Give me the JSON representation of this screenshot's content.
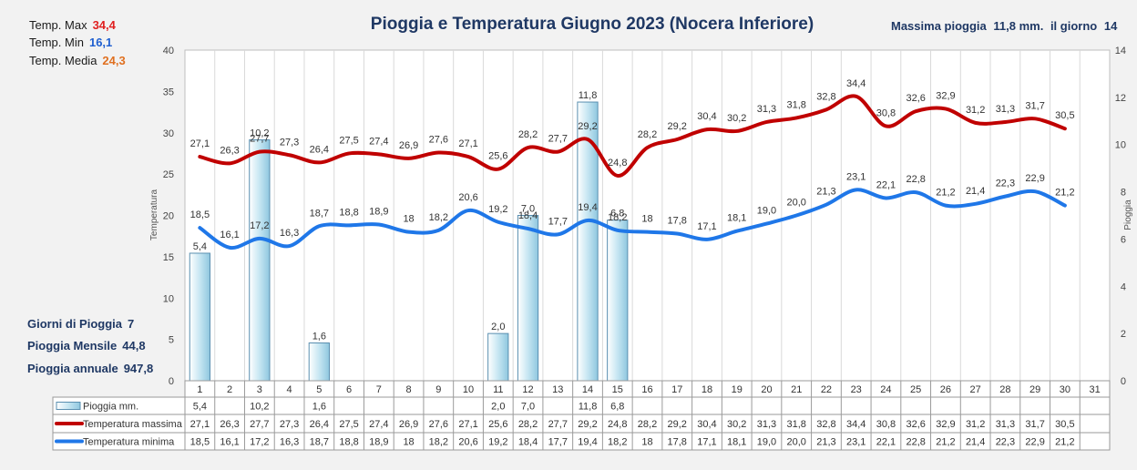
{
  "stats": {
    "max_label": "Temp. Max",
    "max_value": "34,4",
    "min_label": "Temp.  Min",
    "min_value": "16,1",
    "avg_label": "Temp. Media",
    "avg_value": "24,3",
    "rain_days_label": "Giorni di Pioggia",
    "rain_days_value": "7",
    "rain_month_label": "Pioggia Mensile",
    "rain_month_value": "44,8",
    "rain_year_label": "Pioggia annuale",
    "rain_year_value": "947,8"
  },
  "header": {
    "max_rain_label": "Massima pioggia",
    "max_rain_value": "11,8 mm.",
    "max_rain_day_label": "il giorno",
    "max_rain_day": "14"
  },
  "colors": {
    "max_temp": "#c00000",
    "min_temp": "#1f77e8",
    "rain_fill": "#c6e6f2",
    "rain_stroke": "#5a8fb0",
    "title": "#1f3864",
    "max_value": "#e02020",
    "min_value": "#2060d0",
    "avg_value": "#e07020"
  },
  "chart_data": {
    "type": "bar+line",
    "title": "Pioggia e Temperatura Giugno 2023 (Nocera Inferiore)",
    "ylabel": "Temperatura",
    "y2label": "Pioggia",
    "ylim": [
      0,
      40
    ],
    "y2lim": [
      0,
      14
    ],
    "yticks": [
      "0",
      "5",
      "10",
      "15",
      "20",
      "25",
      "30",
      "35",
      "40"
    ],
    "y2ticks": [
      "0",
      "2",
      "4",
      "6",
      "8",
      "10",
      "12",
      "14"
    ],
    "grid": true,
    "categories": [
      "1",
      "2",
      "3",
      "4",
      "5",
      "6",
      "7",
      "8",
      "9",
      "10",
      "11",
      "12",
      "13",
      "14",
      "15",
      "16",
      "17",
      "18",
      "19",
      "20",
      "21",
      "22",
      "23",
      "24",
      "25",
      "26",
      "27",
      "28",
      "29",
      "30",
      "31"
    ],
    "series": [
      {
        "name": "Pioggia mm.",
        "type": "bar",
        "axis": "right",
        "values": [
          5.4,
          null,
          10.2,
          null,
          1.6,
          null,
          null,
          null,
          null,
          null,
          2.0,
          7.0,
          null,
          11.8,
          6.8,
          null,
          null,
          null,
          null,
          null,
          null,
          null,
          null,
          null,
          null,
          null,
          null,
          null,
          null,
          null,
          null
        ],
        "labels": [
          "5,4",
          "",
          "10,2",
          "",
          "1,6",
          "",
          "",
          "",
          "",
          "",
          "2,0",
          "7,0",
          "",
          "11,8",
          "6,8",
          "",
          "",
          "",
          "",
          "",
          "",
          "",
          "",
          "",
          "",
          "",
          "",
          "",
          "",
          "",
          ""
        ]
      },
      {
        "name": "Temperatura massima",
        "type": "line",
        "axis": "left",
        "values": [
          27.1,
          26.3,
          27.7,
          27.3,
          26.4,
          27.5,
          27.4,
          26.9,
          27.6,
          27.1,
          25.6,
          28.2,
          27.7,
          29.2,
          24.8,
          28.2,
          29.2,
          30.4,
          30.2,
          31.3,
          31.8,
          32.8,
          34.4,
          30.8,
          32.6,
          32.9,
          31.2,
          31.3,
          31.7,
          30.5,
          null
        ],
        "labels": [
          "27,1",
          "26,3",
          "27,7",
          "27,3",
          "26,4",
          "27,5",
          "27,4",
          "26,9",
          "27,6",
          "27,1",
          "25,6",
          "28,2",
          "27,7",
          "29,2",
          "24,8",
          "28,2",
          "29,2",
          "30,4",
          "30,2",
          "31,3",
          "31,8",
          "32,8",
          "34,4",
          "30,8",
          "32,6",
          "32,9",
          "31,2",
          "31,3",
          "31,7",
          "30,5",
          ""
        ]
      },
      {
        "name": "Temperatura minima",
        "type": "line",
        "axis": "left",
        "values": [
          18.5,
          16.1,
          17.2,
          16.3,
          18.7,
          18.8,
          18.9,
          18.0,
          18.2,
          20.6,
          19.2,
          18.4,
          17.7,
          19.4,
          18.2,
          18.0,
          17.8,
          17.1,
          18.1,
          19.0,
          20.0,
          21.3,
          23.1,
          22.1,
          22.8,
          21.2,
          21.4,
          22.3,
          22.9,
          21.2,
          null
        ],
        "labels": [
          "18,5",
          "16,1",
          "17,2",
          "16,3",
          "18,7",
          "18,8",
          "18,9",
          "18",
          "18,2",
          "20,6",
          "19,2",
          "18,4",
          "17,7",
          "19,4",
          "18,2",
          "18",
          "17,8",
          "17,1",
          "18,1",
          "19,0",
          "20,0",
          "21,3",
          "23,1",
          "22,1",
          "22,8",
          "21,2",
          "21,4",
          "22,3",
          "22,9",
          "21,2",
          ""
        ]
      }
    ]
  }
}
